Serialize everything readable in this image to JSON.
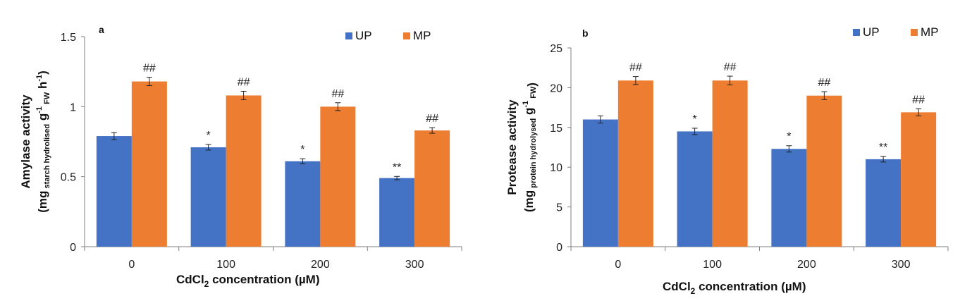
{
  "colors": {
    "UP": "#4472C4",
    "MP": "#ED7D31",
    "axis": "#7f7f7f",
    "error": "#222222"
  },
  "chart_data": [
    {
      "type": "bar",
      "panel_label": "a",
      "categories": [
        "0",
        "100",
        "200",
        "300"
      ],
      "series": [
        {
          "name": "UP",
          "values": [
            0.79,
            0.71,
            0.61,
            0.49
          ],
          "errors": [
            0.025,
            0.02,
            0.018,
            0.012
          ],
          "annotations": [
            "",
            "*",
            "*",
            "**"
          ]
        },
        {
          "name": "MP",
          "values": [
            1.18,
            1.08,
            1.0,
            0.83
          ],
          "errors": [
            0.03,
            0.03,
            0.028,
            0.02
          ],
          "annotations": [
            "##",
            "##",
            "##",
            "##"
          ]
        }
      ],
      "ylim": [
        0,
        1.5
      ],
      "yticks": [
        "0",
        "0.5",
        "1",
        "1.5"
      ],
      "xlabel": {
        "pre": "CdCl",
        "sub": "2",
        "post": "  concentration (µM)"
      },
      "ylabel": {
        "line1": "Amylase activity",
        "pre": "(mg",
        "sub1": "starch hydrolised",
        "mid": " g",
        "sup": "-1",
        "sub2": "FW",
        "post": " h",
        "sup2": "-1",
        "end": ")"
      },
      "legend": "top-right",
      "grid": false
    },
    {
      "type": "bar",
      "panel_label": "b",
      "categories": [
        "0",
        "100",
        "200",
        "300"
      ],
      "series": [
        {
          "name": "UP",
          "values": [
            16.0,
            14.5,
            12.3,
            11.0
          ],
          "errors": [
            0.45,
            0.4,
            0.4,
            0.35
          ],
          "annotations": [
            "",
            "*",
            "*",
            "**"
          ]
        },
        {
          "name": "MP",
          "values": [
            20.9,
            20.9,
            19.0,
            16.9
          ],
          "errors": [
            0.5,
            0.55,
            0.5,
            0.45
          ],
          "annotations": [
            "##",
            "##",
            "##",
            "##"
          ]
        }
      ],
      "ylim": [
        0,
        25
      ],
      "yticks": [
        "0",
        "5",
        "10",
        "15",
        "20",
        "25"
      ],
      "xlabel": {
        "pre": "CdCl",
        "sub": "2",
        "post": " concentration (µM)"
      },
      "ylabel": {
        "line1": "Protease activity",
        "pre": "(mg",
        "sub1": "protein hydrolysed",
        "mid": " g",
        "sup": "-1",
        "sub2": "FW",
        "post": "",
        "sup2": "",
        "end": ")"
      },
      "legend": "top-right",
      "grid": false
    }
  ]
}
